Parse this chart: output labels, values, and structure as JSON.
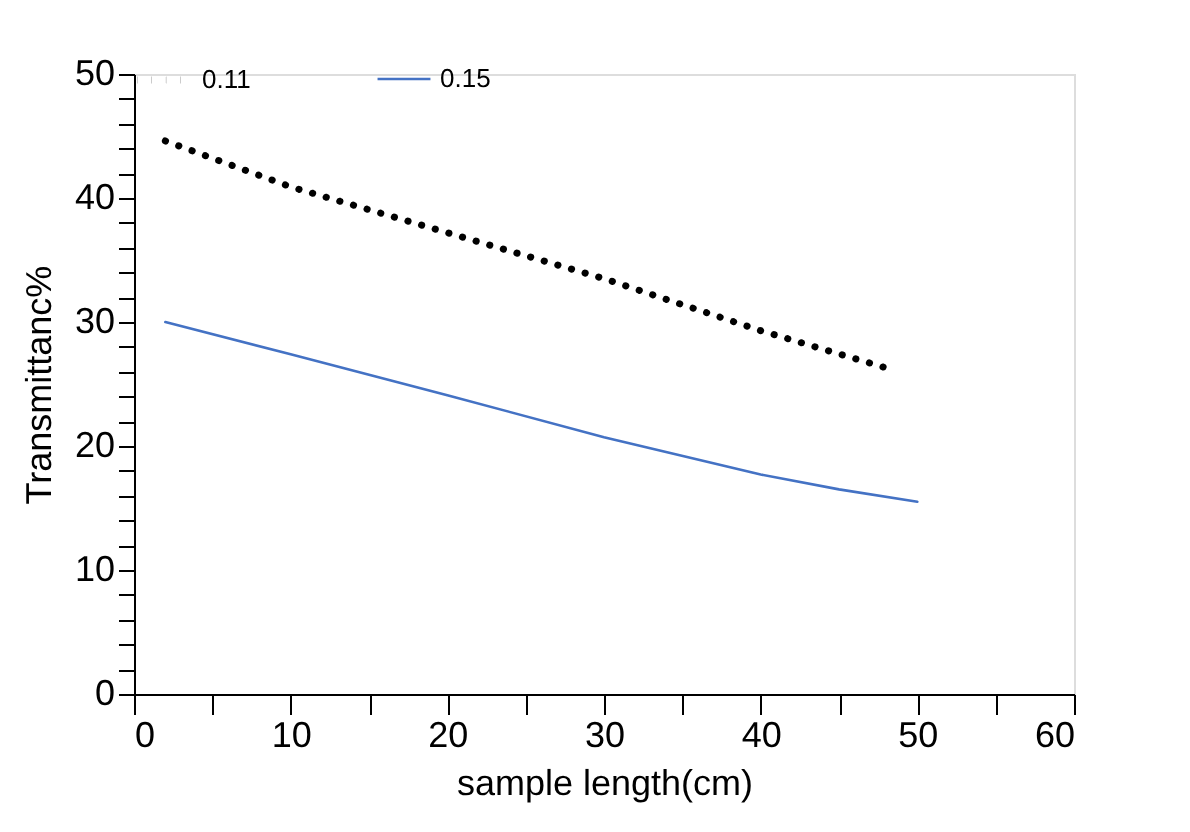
{
  "chart_data": {
    "type": "line",
    "xlabel": "sample length(cm)",
    "ylabel": "Transmittanc%",
    "xlim": [
      0,
      60
    ],
    "ylim": [
      0,
      50
    ],
    "xticks": [
      0,
      {
        "value": 5,
        "label": null
      },
      10,
      {
        "value": 15,
        "label": null
      },
      20,
      {
        "value": 25,
        "label": null
      },
      30,
      {
        "value": 35,
        "label": null
      },
      40,
      {
        "value": 45,
        "label": null
      },
      50,
      {
        "value": 55,
        "label": null
      },
      60
    ],
    "yticks": [
      0,
      {
        "value": 2,
        "label": null
      },
      {
        "value": 4,
        "label": null
      },
      {
        "value": 6,
        "label": null
      },
      {
        "value": 8,
        "label": null
      },
      10,
      {
        "value": 12,
        "label": null
      },
      {
        "value": 14,
        "label": null
      },
      {
        "value": 16,
        "label": null
      },
      {
        "value": 18,
        "label": null
      },
      20,
      {
        "value": 22,
        "label": null
      },
      {
        "value": 24,
        "label": null
      },
      {
        "value": 26,
        "label": null
      },
      {
        "value": 28,
        "label": null
      },
      30,
      {
        "value": 32,
        "label": null
      },
      {
        "value": 34,
        "label": null
      },
      {
        "value": 36,
        "label": null
      },
      {
        "value": 38,
        "label": null
      },
      40,
      {
        "value": 42,
        "label": null
      },
      {
        "value": 44,
        "label": null
      },
      {
        "value": 46,
        "label": null
      },
      {
        "value": 48,
        "label": null
      },
      50
    ],
    "grid": false,
    "legend": "top",
    "marker": "none",
    "series": [
      {
        "name": "0.11",
        "color": "#000000",
        "line_style": "dotted",
        "x": [
          2,
          10,
          20,
          30,
          40,
          48
        ],
        "values": [
          44.6,
          40.9,
          37.2,
          33.5,
          29.3,
          26.3
        ]
      },
      {
        "name": "0.15",
        "color": "#4472c4",
        "line_style": "solid",
        "x": [
          2,
          10,
          20,
          30,
          40,
          45,
          50
        ],
        "values": [
          30,
          27.4,
          24.1,
          20.7,
          17.7,
          16.5,
          15.5
        ]
      }
    ]
  }
}
